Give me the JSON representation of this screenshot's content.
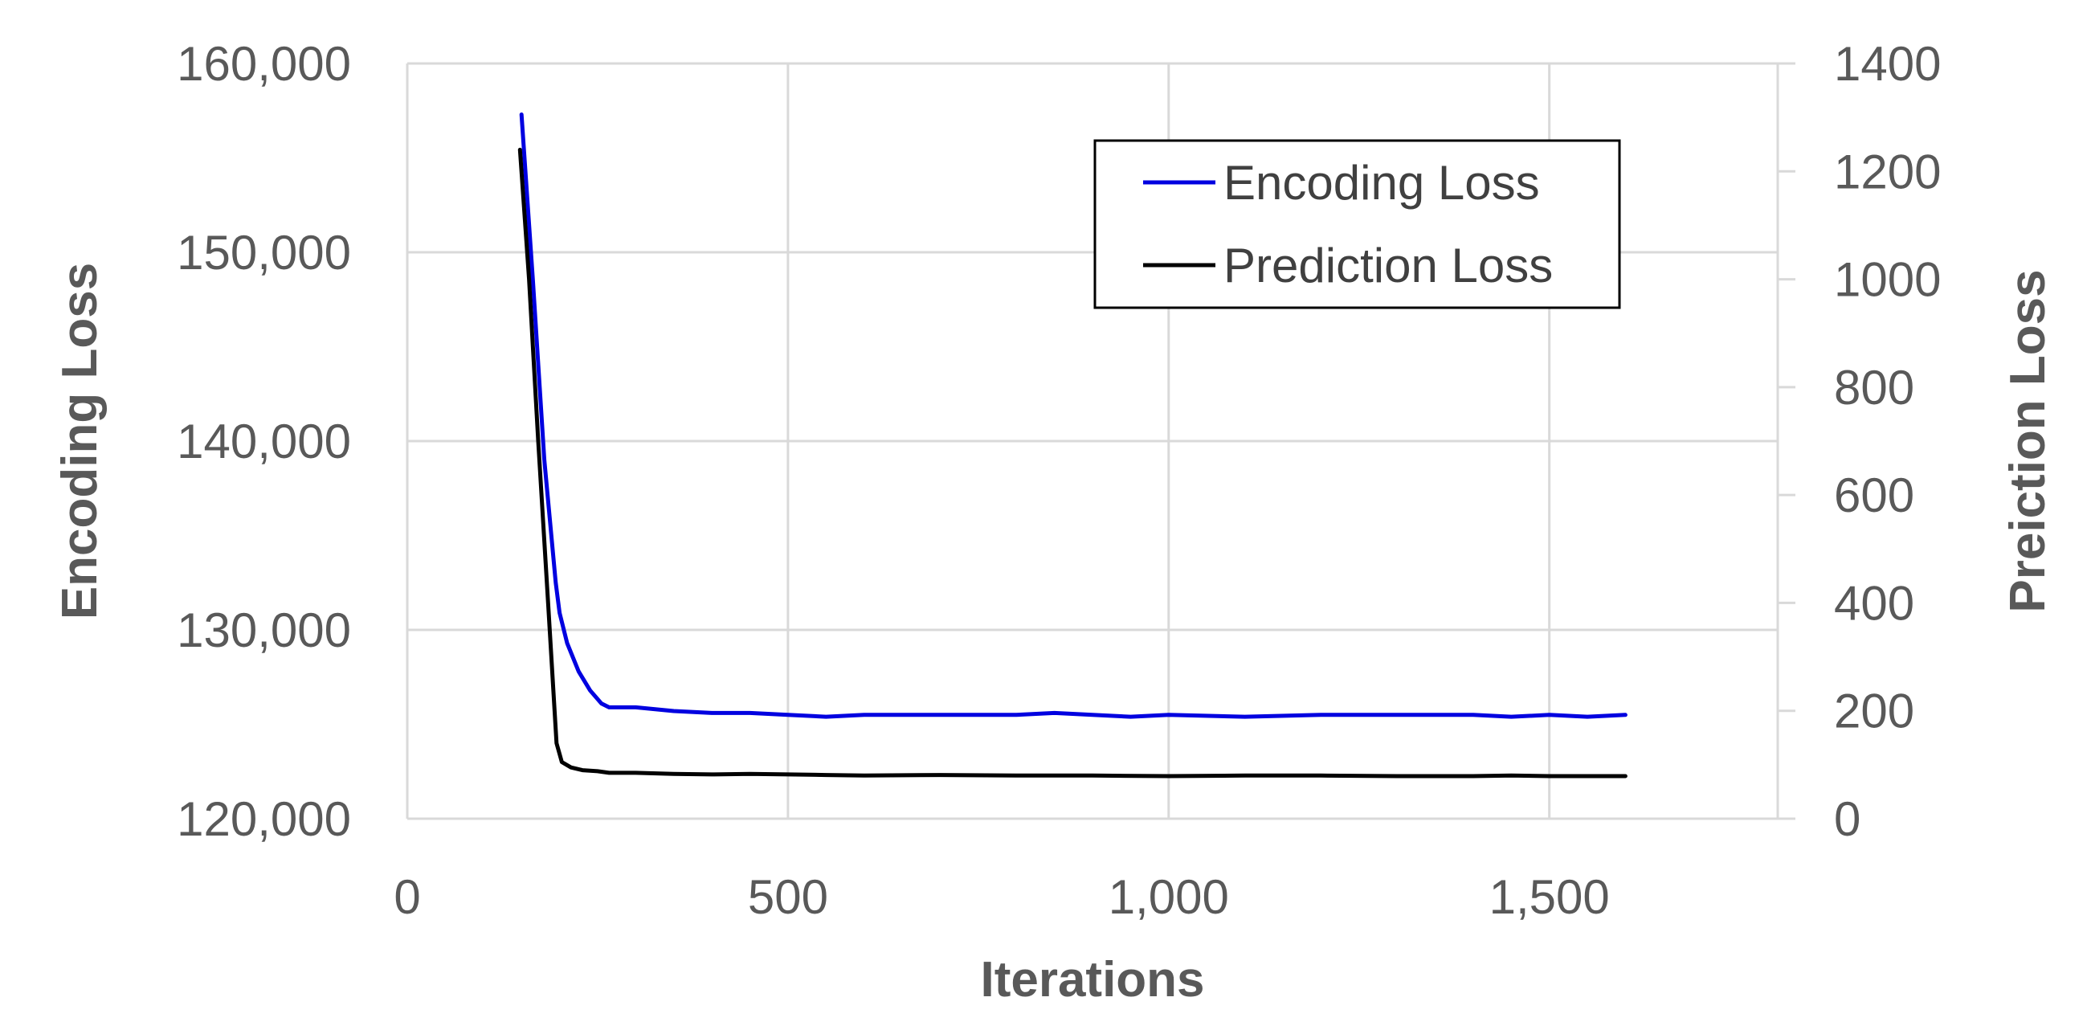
{
  "chart_data": {
    "type": "line",
    "title": "",
    "xlabel": "Iterations",
    "ylabel": "Encoding Loss",
    "y2label": "Preiction Loss",
    "xlim": [
      0,
      1800
    ],
    "ylim": [
      120000,
      160000
    ],
    "y2lim": [
      0,
      1400
    ],
    "x_ticks": [
      0,
      500,
      1000,
      1500
    ],
    "x_tick_labels": [
      "0",
      "500",
      "1,000",
      "1,500"
    ],
    "y_ticks": [
      120000,
      130000,
      140000,
      150000,
      160000
    ],
    "y_tick_labels": [
      "120,000",
      "130,000",
      "140,000",
      "150,000",
      "160,000"
    ],
    "y2_ticks": [
      0,
      200,
      400,
      600,
      800,
      1000,
      1200,
      1400
    ],
    "y2_tick_labels": [
      "0",
      "200",
      "400",
      "600",
      "800",
      "1000",
      "1200",
      "1400"
    ],
    "grid": true,
    "legend_position": "top-right",
    "series": [
      {
        "name": "Encoding Loss",
        "axis": "left",
        "color": "#0000e0",
        "x": [
          150,
          165,
          180,
          195,
          200,
          210,
          225,
          240,
          255,
          265,
          275,
          300,
          350,
          400,
          450,
          500,
          550,
          600,
          700,
          800,
          850,
          900,
          950,
          1000,
          1100,
          1200,
          1300,
          1400,
          1450,
          1500,
          1550,
          1600
        ],
        "y": [
          157300,
          148500,
          139000,
          132500,
          130900,
          129300,
          127800,
          126800,
          126100,
          125900,
          125900,
          125900,
          125700,
          125600,
          125600,
          125500,
          125400,
          125500,
          125500,
          125500,
          125600,
          125500,
          125400,
          125500,
          125400,
          125500,
          125500,
          125500,
          125400,
          125500,
          125400,
          125500
        ]
      },
      {
        "name": "Prediction Loss",
        "axis": "right",
        "color": "#000000",
        "x": [
          148,
          160,
          172,
          185,
          196,
          203,
          215,
          230,
          250,
          265,
          280,
          300,
          350,
          400,
          450,
          500,
          550,
          600,
          700,
          800,
          900,
          1000,
          1100,
          1200,
          1300,
          1400,
          1450,
          1500,
          1600
        ],
        "y": [
          1240,
          1000,
          700,
          400,
          140,
          105,
          95,
          90,
          88,
          85,
          85,
          85,
          83,
          82,
          83,
          82,
          81,
          80,
          81,
          80,
          80,
          79,
          80,
          80,
          79,
          79,
          80,
          79,
          79
        ]
      }
    ]
  }
}
